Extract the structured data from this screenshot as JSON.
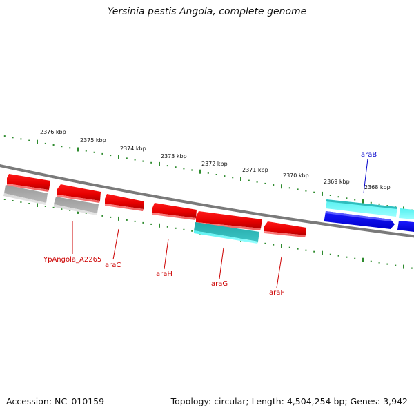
{
  "title": "Yersinia pestis Angola, complete genome",
  "footer": {
    "accession": "Accession: NC_010159",
    "topology": "Topology: circular; Length: 4,504,254 bp; Genes: 3,942"
  },
  "colors": {
    "backbone": "#7a7a7a",
    "tick": "#2e8b2e",
    "forward_gene": "#ee0000",
    "pseudogene": "#a8a8a8",
    "rna_gene": "#33cccc",
    "highlight_gene": "#0000ee",
    "red_label": "#cc0000",
    "blue_label": "#0000cc"
  },
  "kbp_ruler": [
    "2376 kbp",
    "2375 kbp",
    "2374 kbp",
    "2373 kbp",
    "2372 kbp",
    "2371 kbp",
    "2370 kbp",
    "2369 kbp",
    "2368 kbp"
  ],
  "gene_labels": [
    {
      "name": "YpAngola_A2265",
      "color": "red"
    },
    {
      "name": "araC",
      "color": "red"
    },
    {
      "name": "araH",
      "color": "red"
    },
    {
      "name": "araG",
      "color": "red"
    },
    {
      "name": "araF",
      "color": "red"
    },
    {
      "name": "araB",
      "color": "blue"
    }
  ]
}
